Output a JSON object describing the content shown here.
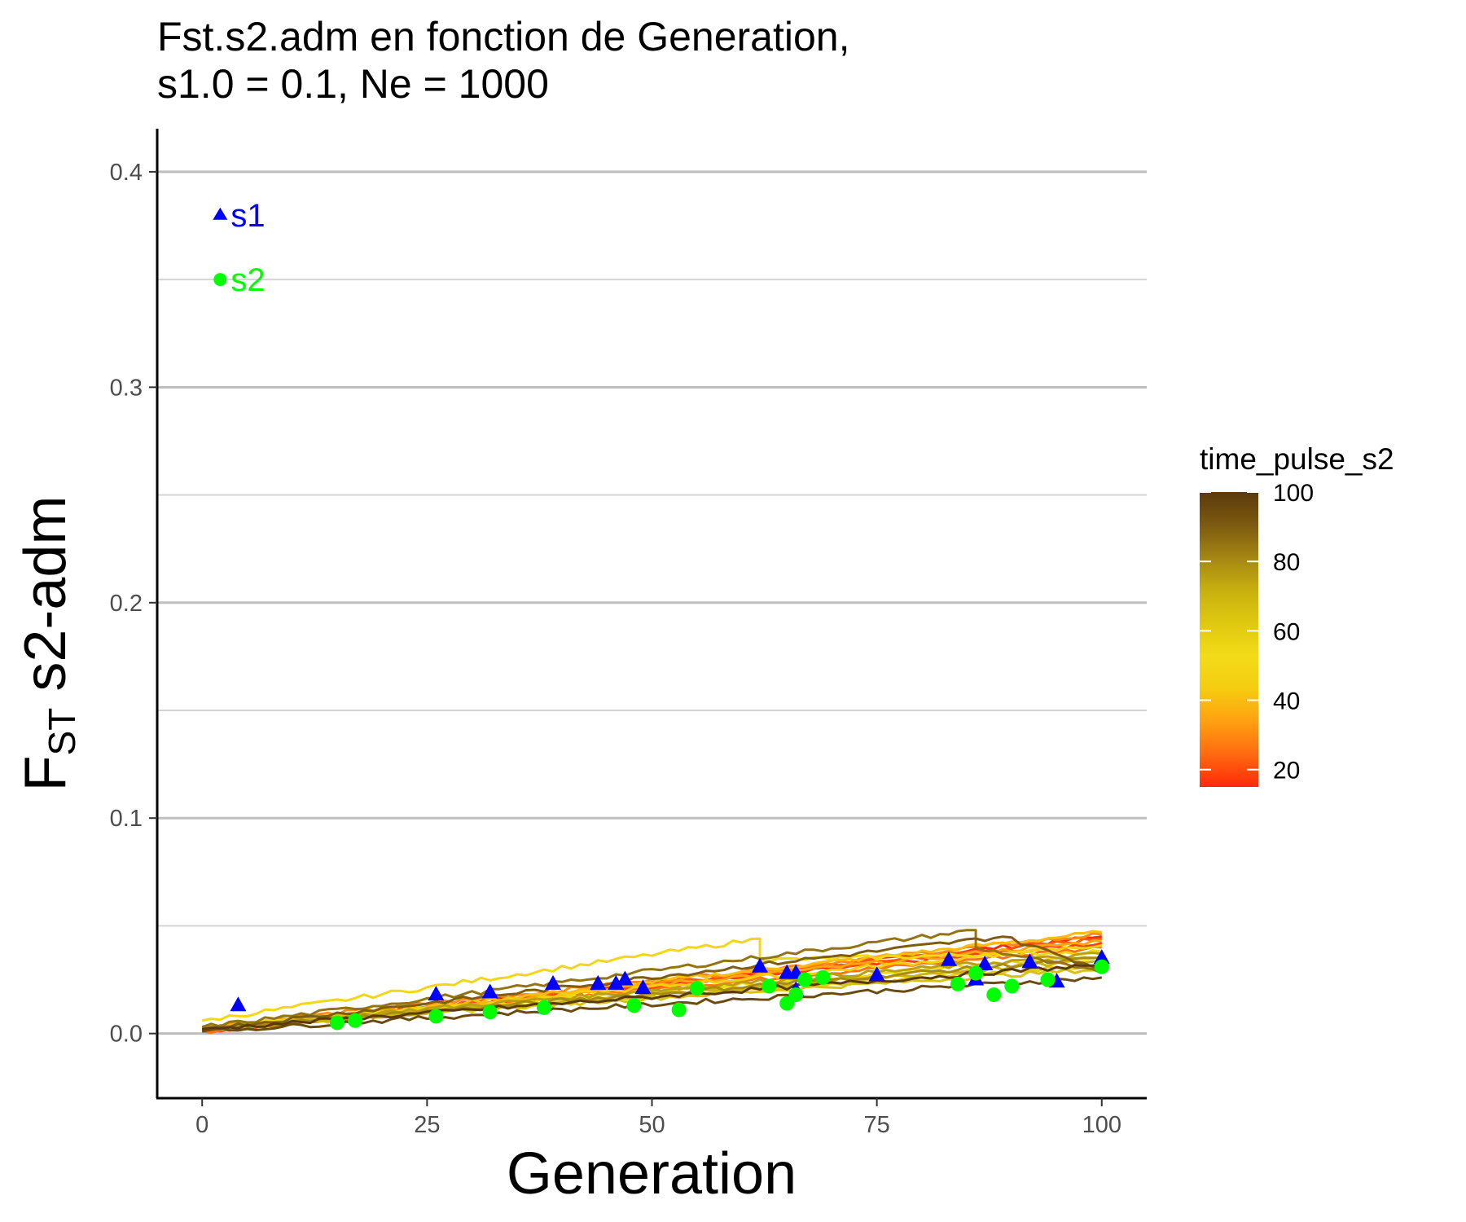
{
  "chart_data": {
    "type": "line",
    "title_lines": [
      "Fst.s2.adm en fonction de Generation,",
      "s1.0 = 0.1, Ne = 1000"
    ],
    "xlabel": "Generation",
    "ylabel_main": "F",
    "ylabel_sub": "ST",
    "ylabel_rest": " s2-adm",
    "xlim": [
      -5,
      105
    ],
    "ylim": [
      -0.03,
      0.42
    ],
    "x_ticks": [
      0,
      25,
      50,
      75,
      100
    ],
    "x_tick_labels": [
      "0",
      "25",
      "50",
      "75",
      "100"
    ],
    "y_ticks": [
      0.0,
      0.1,
      0.2,
      0.3,
      0.4
    ],
    "y_tick_labels": [
      "0.0",
      "0.1",
      "0.2",
      "0.3",
      "0.4"
    ],
    "y_minor_ticks": [
      0.05,
      0.15,
      0.25,
      0.35
    ],
    "grid": "horizontal",
    "legend": {
      "title": "time_pulse_s2",
      "placement": "right",
      "type": "colorbar",
      "range": [
        15,
        100
      ],
      "ticks": [
        20,
        40,
        60,
        80,
        100
      ],
      "tick_labels": [
        "20",
        "40",
        "60",
        "80",
        "100"
      ],
      "colors": [
        "#FF2A0A",
        "#FF6A10",
        "#FFA010",
        "#F5CC10",
        "#F2DC18",
        "#E0C810",
        "#C8B010",
        "#A48612",
        "#7C5A10",
        "#5A3A0C"
      ]
    },
    "annotations": [
      {
        "label": "s1",
        "x": 2,
        "y": 0.38,
        "shape": "triangle",
        "color": "#0000FF"
      },
      {
        "label": "s2",
        "x": 2,
        "y": 0.35,
        "shape": "circle",
        "color": "#00FF00"
      }
    ],
    "series": [
      {
        "time_pulse_s2": 15,
        "endpoints": [
          [
            0,
            0.001
          ],
          [
            100,
            0.045
          ]
        ]
      },
      {
        "time_pulse_s2": 18,
        "endpoints": [
          [
            0,
            0.002
          ],
          [
            100,
            0.042
          ]
        ]
      },
      {
        "time_pulse_s2": 22,
        "endpoints": [
          [
            0,
            0.002
          ],
          [
            100,
            0.044
          ]
        ]
      },
      {
        "time_pulse_s2": 26,
        "endpoints": [
          [
            0,
            0.001
          ],
          [
            100,
            0.04
          ]
        ]
      },
      {
        "time_pulse_s2": 30,
        "endpoints": [
          [
            0,
            0.003
          ],
          [
            100,
            0.046
          ]
        ]
      },
      {
        "time_pulse_s2": 35,
        "endpoints": [
          [
            0,
            0.002
          ],
          [
            100,
            0.043
          ]
        ]
      },
      {
        "time_pulse_s2": 40,
        "endpoints": [
          [
            0,
            0.001
          ],
          [
            100,
            0.047
          ]
        ]
      },
      {
        "time_pulse_s2": 45,
        "endpoints": [
          [
            0,
            0.002
          ],
          [
            100,
            0.041
          ]
        ]
      },
      {
        "time_pulse_s2": 50,
        "endpoints": [
          [
            0,
            0.006
          ],
          [
            62,
            0.044
          ],
          [
            62,
            0.034
          ],
          [
            100,
            0.038
          ]
        ]
      },
      {
        "time_pulse_s2": 55,
        "endpoints": [
          [
            0,
            0.003
          ],
          [
            100,
            0.036
          ]
        ]
      },
      {
        "time_pulse_s2": 60,
        "endpoints": [
          [
            0,
            0.002
          ],
          [
            100,
            0.032
          ]
        ]
      },
      {
        "time_pulse_s2": 65,
        "endpoints": [
          [
            0,
            0.003
          ],
          [
            100,
            0.03
          ]
        ]
      },
      {
        "time_pulse_s2": 70,
        "endpoints": [
          [
            0,
            0.002
          ],
          [
            100,
            0.034
          ]
        ]
      },
      {
        "time_pulse_s2": 75,
        "endpoints": [
          [
            0,
            0.003
          ],
          [
            100,
            0.037
          ]
        ]
      },
      {
        "time_pulse_s2": 80,
        "endpoints": [
          [
            0,
            0.002
          ],
          [
            100,
            0.035
          ]
        ]
      },
      {
        "time_pulse_s2": 85,
        "endpoints": [
          [
            0,
            0.003
          ],
          [
            86,
            0.048
          ],
          [
            86,
            0.04
          ],
          [
            100,
            0.028
          ]
        ]
      },
      {
        "time_pulse_s2": 90,
        "endpoints": [
          [
            0,
            0.002
          ],
          [
            89,
            0.045
          ],
          [
            100,
            0.03
          ]
        ]
      },
      {
        "time_pulse_s2": 95,
        "endpoints": [
          [
            0,
            0.001
          ],
          [
            100,
            0.026
          ]
        ]
      },
      {
        "time_pulse_s2": 100,
        "endpoints": [
          [
            0,
            0.002
          ],
          [
            100,
            0.032
          ]
        ]
      }
    ],
    "s1_points": [
      [
        4,
        0.013
      ],
      [
        26,
        0.018
      ],
      [
        32,
        0.019
      ],
      [
        39,
        0.023
      ],
      [
        44,
        0.023
      ],
      [
        46,
        0.023
      ],
      [
        47,
        0.025
      ],
      [
        49,
        0.021
      ],
      [
        62,
        0.031
      ],
      [
        65,
        0.028
      ],
      [
        66,
        0.028
      ],
      [
        66,
        0.02
      ],
      [
        75,
        0.027
      ],
      [
        83,
        0.034
      ],
      [
        86,
        0.025
      ],
      [
        87,
        0.032
      ],
      [
        92,
        0.033
      ],
      [
        95,
        0.024
      ],
      [
        100,
        0.035
      ]
    ],
    "s2_points": [
      [
        15,
        0.005
      ],
      [
        17,
        0.006
      ],
      [
        26,
        0.008
      ],
      [
        32,
        0.01
      ],
      [
        38,
        0.012
      ],
      [
        48,
        0.013
      ],
      [
        53,
        0.011
      ],
      [
        55,
        0.021
      ],
      [
        63,
        0.022
      ],
      [
        65,
        0.014
      ],
      [
        66,
        0.018
      ],
      [
        67,
        0.025
      ],
      [
        69,
        0.026
      ],
      [
        84,
        0.023
      ],
      [
        86,
        0.028
      ],
      [
        88,
        0.018
      ],
      [
        90,
        0.022
      ],
      [
        94,
        0.025
      ],
      [
        100,
        0.031
      ]
    ]
  }
}
